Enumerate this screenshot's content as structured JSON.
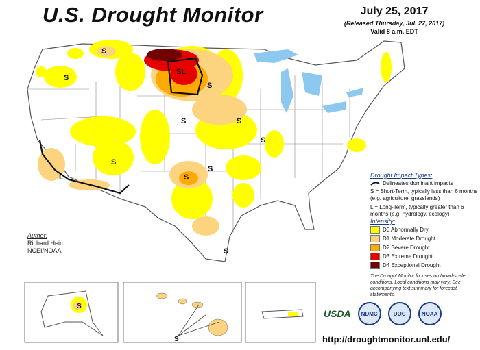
{
  "header": {
    "title": "U.S. Drought Monitor",
    "date": "July 25, 2017",
    "released": "(Released Thursday, Jul. 27, 2017)",
    "valid": "Valid 8 a.m. EDT"
  },
  "legend": {
    "impact_title": "Drought Impact Types:",
    "delineates": "Delineates dominant impacts",
    "short_term": "S = Short-Term, typically less than 6 months (e.g. agriculture, grasslands)",
    "long_term": "L = Long-Term, typically greater than 6 months (e.g. hydrology, ecology)",
    "intensity_title": "Intensity:",
    "levels": [
      {
        "label": "D0 Abnormally Dry",
        "color": "#ffff00"
      },
      {
        "label": "D1 Moderate Drought",
        "color": "#fcd37f"
      },
      {
        "label": "D2 Severe Drought",
        "color": "#ffaa00"
      },
      {
        "label": "D3 Extreme Drought",
        "color": "#e60000"
      },
      {
        "label": "D4 Exceptional Drought",
        "color": "#730000"
      }
    ],
    "disclaimer": "The Drought Monitor focuses on broad-scale conditions. Local conditions may vary. See accompanying text summary for forecast statements."
  },
  "author": {
    "label": "Author:",
    "name": "Richard Heim",
    "org": "NCEI/NOAA"
  },
  "logos": {
    "usda": "USDA",
    "ndmc": "NDMC",
    "doc": "DOC",
    "noaa": "NOAA"
  },
  "url": "http://droughtmonitor.unl.edu/",
  "map_labels": {
    "s": "S",
    "l": "L",
    "sl": "SL"
  },
  "colors": {
    "water": "#8cc8ef",
    "border": "#555555",
    "d0": "#ffff00",
    "d1": "#fcd37f",
    "d2": "#ffaa00",
    "d3": "#e60000",
    "d4": "#730000"
  }
}
